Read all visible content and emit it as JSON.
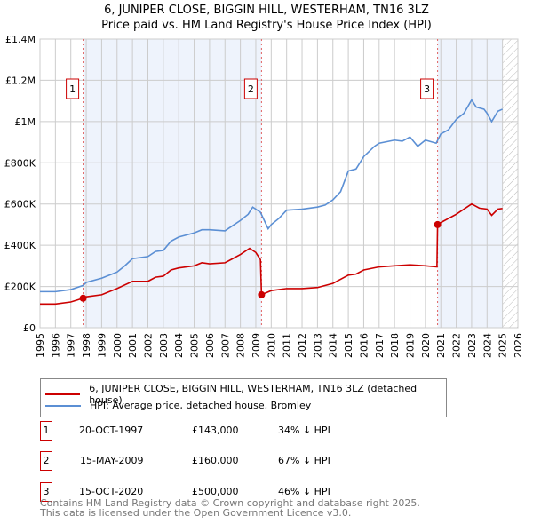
{
  "chart_data": {
    "type": "line",
    "title": "6, JUNIPER CLOSE, BIGGIN HILL, WESTERHAM, TN16 3LZ",
    "subtitle": "Price paid vs. HM Land Registry's House Price Index (HPI)",
    "xlim": [
      1995,
      2026
    ],
    "ylim": [
      0,
      1400000
    ],
    "x_ticks": [
      "1995",
      "1996",
      "1997",
      "1998",
      "1999",
      "2000",
      "2001",
      "2002",
      "2003",
      "2004",
      "2005",
      "2006",
      "2007",
      "2008",
      "2009",
      "2010",
      "2011",
      "2012",
      "2013",
      "2014",
      "2015",
      "2016",
      "2017",
      "2018",
      "2019",
      "2020",
      "2021",
      "2022",
      "2023",
      "2024",
      "2025",
      "2026"
    ],
    "y_ticks": [
      {
        "v": 0,
        "l": "£0"
      },
      {
        "v": 200000,
        "l": "£200K"
      },
      {
        "v": 400000,
        "l": "£400K"
      },
      {
        "v": 600000,
        "l": "£600K"
      },
      {
        "v": 800000,
        "l": "£800K"
      },
      {
        "v": 1000000,
        "l": "£1M"
      },
      {
        "v": 1200000,
        "l": "£1.2M"
      },
      {
        "v": 1400000,
        "l": "£1.4M"
      }
    ],
    "grid": true,
    "shaded_ranges": [
      [
        1997.8,
        2009.37
      ],
      [
        2020.79,
        2025.0
      ]
    ],
    "hatched_from": 2025.0,
    "series": [
      {
        "name": "6, JUNIPER CLOSE, BIGGIN HILL, WESTERHAM, TN16 3LZ (detached house)",
        "color": "#cc0000",
        "points": [
          [
            1995,
            115
          ],
          [
            1996,
            115
          ],
          [
            1997,
            125
          ],
          [
            1997.8,
            143
          ],
          [
            1998,
            150
          ],
          [
            1999,
            160
          ],
          [
            2000,
            190
          ],
          [
            2001,
            225
          ],
          [
            2002,
            225
          ],
          [
            2002.5,
            245
          ],
          [
            2003,
            250
          ],
          [
            2003.5,
            280
          ],
          [
            2004,
            290
          ],
          [
            2005,
            300
          ],
          [
            2005.5,
            315
          ],
          [
            2006,
            310
          ],
          [
            2007,
            315
          ],
          [
            2007.5,
            335
          ],
          [
            2008,
            355
          ],
          [
            2008.6,
            385
          ],
          [
            2009,
            365
          ],
          [
            2009.3,
            330
          ],
          [
            2009.37,
            160
          ],
          [
            2010,
            180
          ],
          [
            2011,
            190
          ],
          [
            2012,
            190
          ],
          [
            2013,
            195
          ],
          [
            2014,
            215
          ],
          [
            2015,
            255
          ],
          [
            2015.5,
            260
          ],
          [
            2016,
            280
          ],
          [
            2017,
            295
          ],
          [
            2018,
            300
          ],
          [
            2019,
            305
          ],
          [
            2020,
            300
          ],
          [
            2020.75,
            295
          ],
          [
            2020.79,
            500
          ],
          [
            2021,
            510
          ],
          [
            2022,
            550
          ],
          [
            2023,
            600
          ],
          [
            2023.5,
            580
          ],
          [
            2024,
            575
          ],
          [
            2024.3,
            545
          ],
          [
            2024.7,
            575
          ],
          [
            2025,
            578
          ]
        ]
      },
      {
        "name": "HPI: Average price, detached house, Bromley",
        "color": "#5b8fd4",
        "points": [
          [
            1995,
            175
          ],
          [
            1996,
            175
          ],
          [
            1997,
            185
          ],
          [
            1997.8,
            205
          ],
          [
            1998,
            220
          ],
          [
            1999,
            240
          ],
          [
            2000,
            270
          ],
          [
            2000.5,
            300
          ],
          [
            2001,
            335
          ],
          [
            2002,
            345
          ],
          [
            2002.5,
            370
          ],
          [
            2003,
            375
          ],
          [
            2003.5,
            420
          ],
          [
            2004,
            440
          ],
          [
            2005,
            460
          ],
          [
            2005.5,
            475
          ],
          [
            2006,
            475
          ],
          [
            2007,
            470
          ],
          [
            2007.5,
            495
          ],
          [
            2008,
            520
          ],
          [
            2008.5,
            550
          ],
          [
            2008.8,
            585
          ],
          [
            2009.3,
            560
          ],
          [
            2009.8,
            480
          ],
          [
            2010,
            500
          ],
          [
            2010.5,
            530
          ],
          [
            2011,
            570
          ],
          [
            2012,
            575
          ],
          [
            2013,
            585
          ],
          [
            2013.5,
            595
          ],
          [
            2014,
            620
          ],
          [
            2014.5,
            660
          ],
          [
            2015,
            760
          ],
          [
            2015.5,
            770
          ],
          [
            2016,
            830
          ],
          [
            2016.7,
            880
          ],
          [
            2017,
            895
          ],
          [
            2018,
            910
          ],
          [
            2018.5,
            905
          ],
          [
            2019,
            925
          ],
          [
            2019.5,
            880
          ],
          [
            2020,
            910
          ],
          [
            2020.7,
            895
          ],
          [
            2021,
            940
          ],
          [
            2021.5,
            960
          ],
          [
            2022,
            1010
          ],
          [
            2022.5,
            1040
          ],
          [
            2023,
            1105
          ],
          [
            2023.3,
            1070
          ],
          [
            2023.8,
            1060
          ],
          [
            2024,
            1040
          ],
          [
            2024.3,
            1000
          ],
          [
            2024.7,
            1050
          ],
          [
            2025,
            1060
          ]
        ]
      }
    ],
    "sales": [
      {
        "label": "1",
        "x": 1997.8,
        "value": 143000,
        "date": "20-OCT-1997",
        "price": "£143,000",
        "hpi": "34% ↓ HPI"
      },
      {
        "label": "2",
        "x": 2009.37,
        "value": 160000,
        "date": "15-MAY-2009",
        "price": "£160,000",
        "hpi": "67% ↓ HPI"
      },
      {
        "label": "3",
        "x": 2020.79,
        "value": 500000,
        "date": "15-OCT-2020",
        "price": "£500,000",
        "hpi": "46% ↓ HPI"
      }
    ],
    "legend_position": "bottom"
  },
  "footer": {
    "line1": "Contains HM Land Registry data © Crown copyright and database right 2025.",
    "line2": "This data is licensed under the Open Government Licence v3.0."
  }
}
